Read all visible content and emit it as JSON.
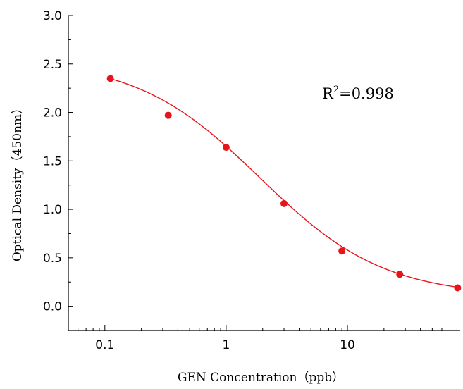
{
  "chart_data": {
    "type": "scatter",
    "title": "",
    "xlabel": "GEN Concentration（ppb）",
    "ylabel": "Optical Density（450nm）",
    "x_scale": "log",
    "xlim": [
      0.05,
      85
    ],
    "ylim": [
      -0.25,
      3.0
    ],
    "x_ticks": [
      0.1,
      1,
      10
    ],
    "x_tick_labels": [
      "0.1",
      "1",
      "10"
    ],
    "y_ticks": [
      0.0,
      0.5,
      1.0,
      1.5,
      2.0,
      2.5,
      3.0
    ],
    "y_tick_labels": [
      "0.0",
      "0.5",
      "1.0",
      "1.5",
      "2.0",
      "2.5",
      "3.0"
    ],
    "grid": false,
    "legend": "none",
    "annotation": {
      "base": "R",
      "sup": "2",
      "rest": "=0.998"
    },
    "series": [
      {
        "points": [
          {
            "x": 0.111,
            "y": 2.35
          },
          {
            "x": 0.333,
            "y": 1.97
          },
          {
            "x": 1.0,
            "y": 1.64
          },
          {
            "x": 3.0,
            "y": 1.06
          },
          {
            "x": 9.0,
            "y": 0.57
          },
          {
            "x": 27.0,
            "y": 0.33
          },
          {
            "x": 81.0,
            "y": 0.19
          }
        ],
        "fit": {
          "model": "4PL",
          "A": 2.55,
          "D": 0.1,
          "C": 1.9,
          "B": 0.85
        }
      }
    ],
    "colors": {
      "series": "#e8141b",
      "axes": "#000000"
    }
  }
}
